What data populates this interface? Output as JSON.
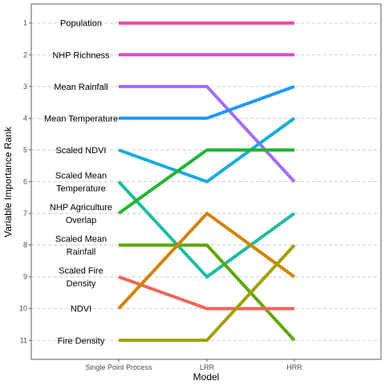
{
  "chart_data": {
    "type": "line",
    "xlabel": "Model",
    "ylabel": "Variable Importance Rank",
    "categories": [
      "Single Point Process",
      "LRR",
      "HRR"
    ],
    "y_ticks": [
      "1",
      "2",
      "3",
      "4",
      "5",
      "6",
      "7",
      "8",
      "9",
      "10",
      "11"
    ],
    "ylim": [
      11.6,
      0.4
    ],
    "y_reversed": true,
    "grid": "horizontal dashed",
    "labels": [
      {
        "rank": 1,
        "lines": [
          "Population"
        ]
      },
      {
        "rank": 2,
        "lines": [
          "NHP Richness"
        ]
      },
      {
        "rank": 3,
        "lines": [
          "Mean Rainfall"
        ]
      },
      {
        "rank": 4,
        "lines": [
          "Mean Temperature"
        ]
      },
      {
        "rank": 5,
        "lines": [
          "Scaled NDVI"
        ]
      },
      {
        "rank": 6,
        "lines": [
          "Scaled Mean",
          "Temperature"
        ]
      },
      {
        "rank": 7,
        "lines": [
          "NHP Agriculture",
          "Overlap"
        ]
      },
      {
        "rank": 8,
        "lines": [
          "Scaled Mean",
          "Rainfall"
        ]
      },
      {
        "rank": 9,
        "lines": [
          "Scaled Fire",
          "Density"
        ]
      },
      {
        "rank": 10,
        "lines": [
          "NDVI"
        ]
      },
      {
        "rank": 11,
        "lines": [
          "Fire Density"
        ]
      }
    ],
    "series": [
      {
        "variable": "Population",
        "values": [
          1,
          1,
          1
        ],
        "color": "#f2469f"
      },
      {
        "variable": "NHP Richness",
        "values": [
          2,
          2,
          2
        ],
        "color": "#e048d6"
      },
      {
        "variable": "Mean Rainfall",
        "values": [
          3,
          3,
          6
        ],
        "color": "#a46cff"
      },
      {
        "variable": "Mean Temperature",
        "values": [
          4,
          4,
          3
        ],
        "color": "#1f96ff"
      },
      {
        "variable": "Scaled NDVI",
        "values": [
          5,
          6,
          4
        ],
        "color": "#19acd8"
      },
      {
        "variable": "Scaled Mean Temperature",
        "values": [
          6,
          9,
          7
        ],
        "color": "#1ebc9c"
      },
      {
        "variable": "NHP Agriculture Overlap",
        "values": [
          7,
          5,
          5
        ],
        "color": "#22b532"
      },
      {
        "variable": "Scaled Mean Rainfall",
        "values": [
          8,
          8,
          11
        ],
        "color": "#5da700"
      },
      {
        "variable": "Scaled Fire Density",
        "values": [
          9,
          10,
          10
        ],
        "color": "#f0655b"
      },
      {
        "variable": "NDVI",
        "values": [
          10,
          7,
          9
        ],
        "color": "#d38200"
      },
      {
        "variable": "Fire Density",
        "values": [
          11,
          11,
          8
        ],
        "color": "#9ea100"
      }
    ]
  }
}
